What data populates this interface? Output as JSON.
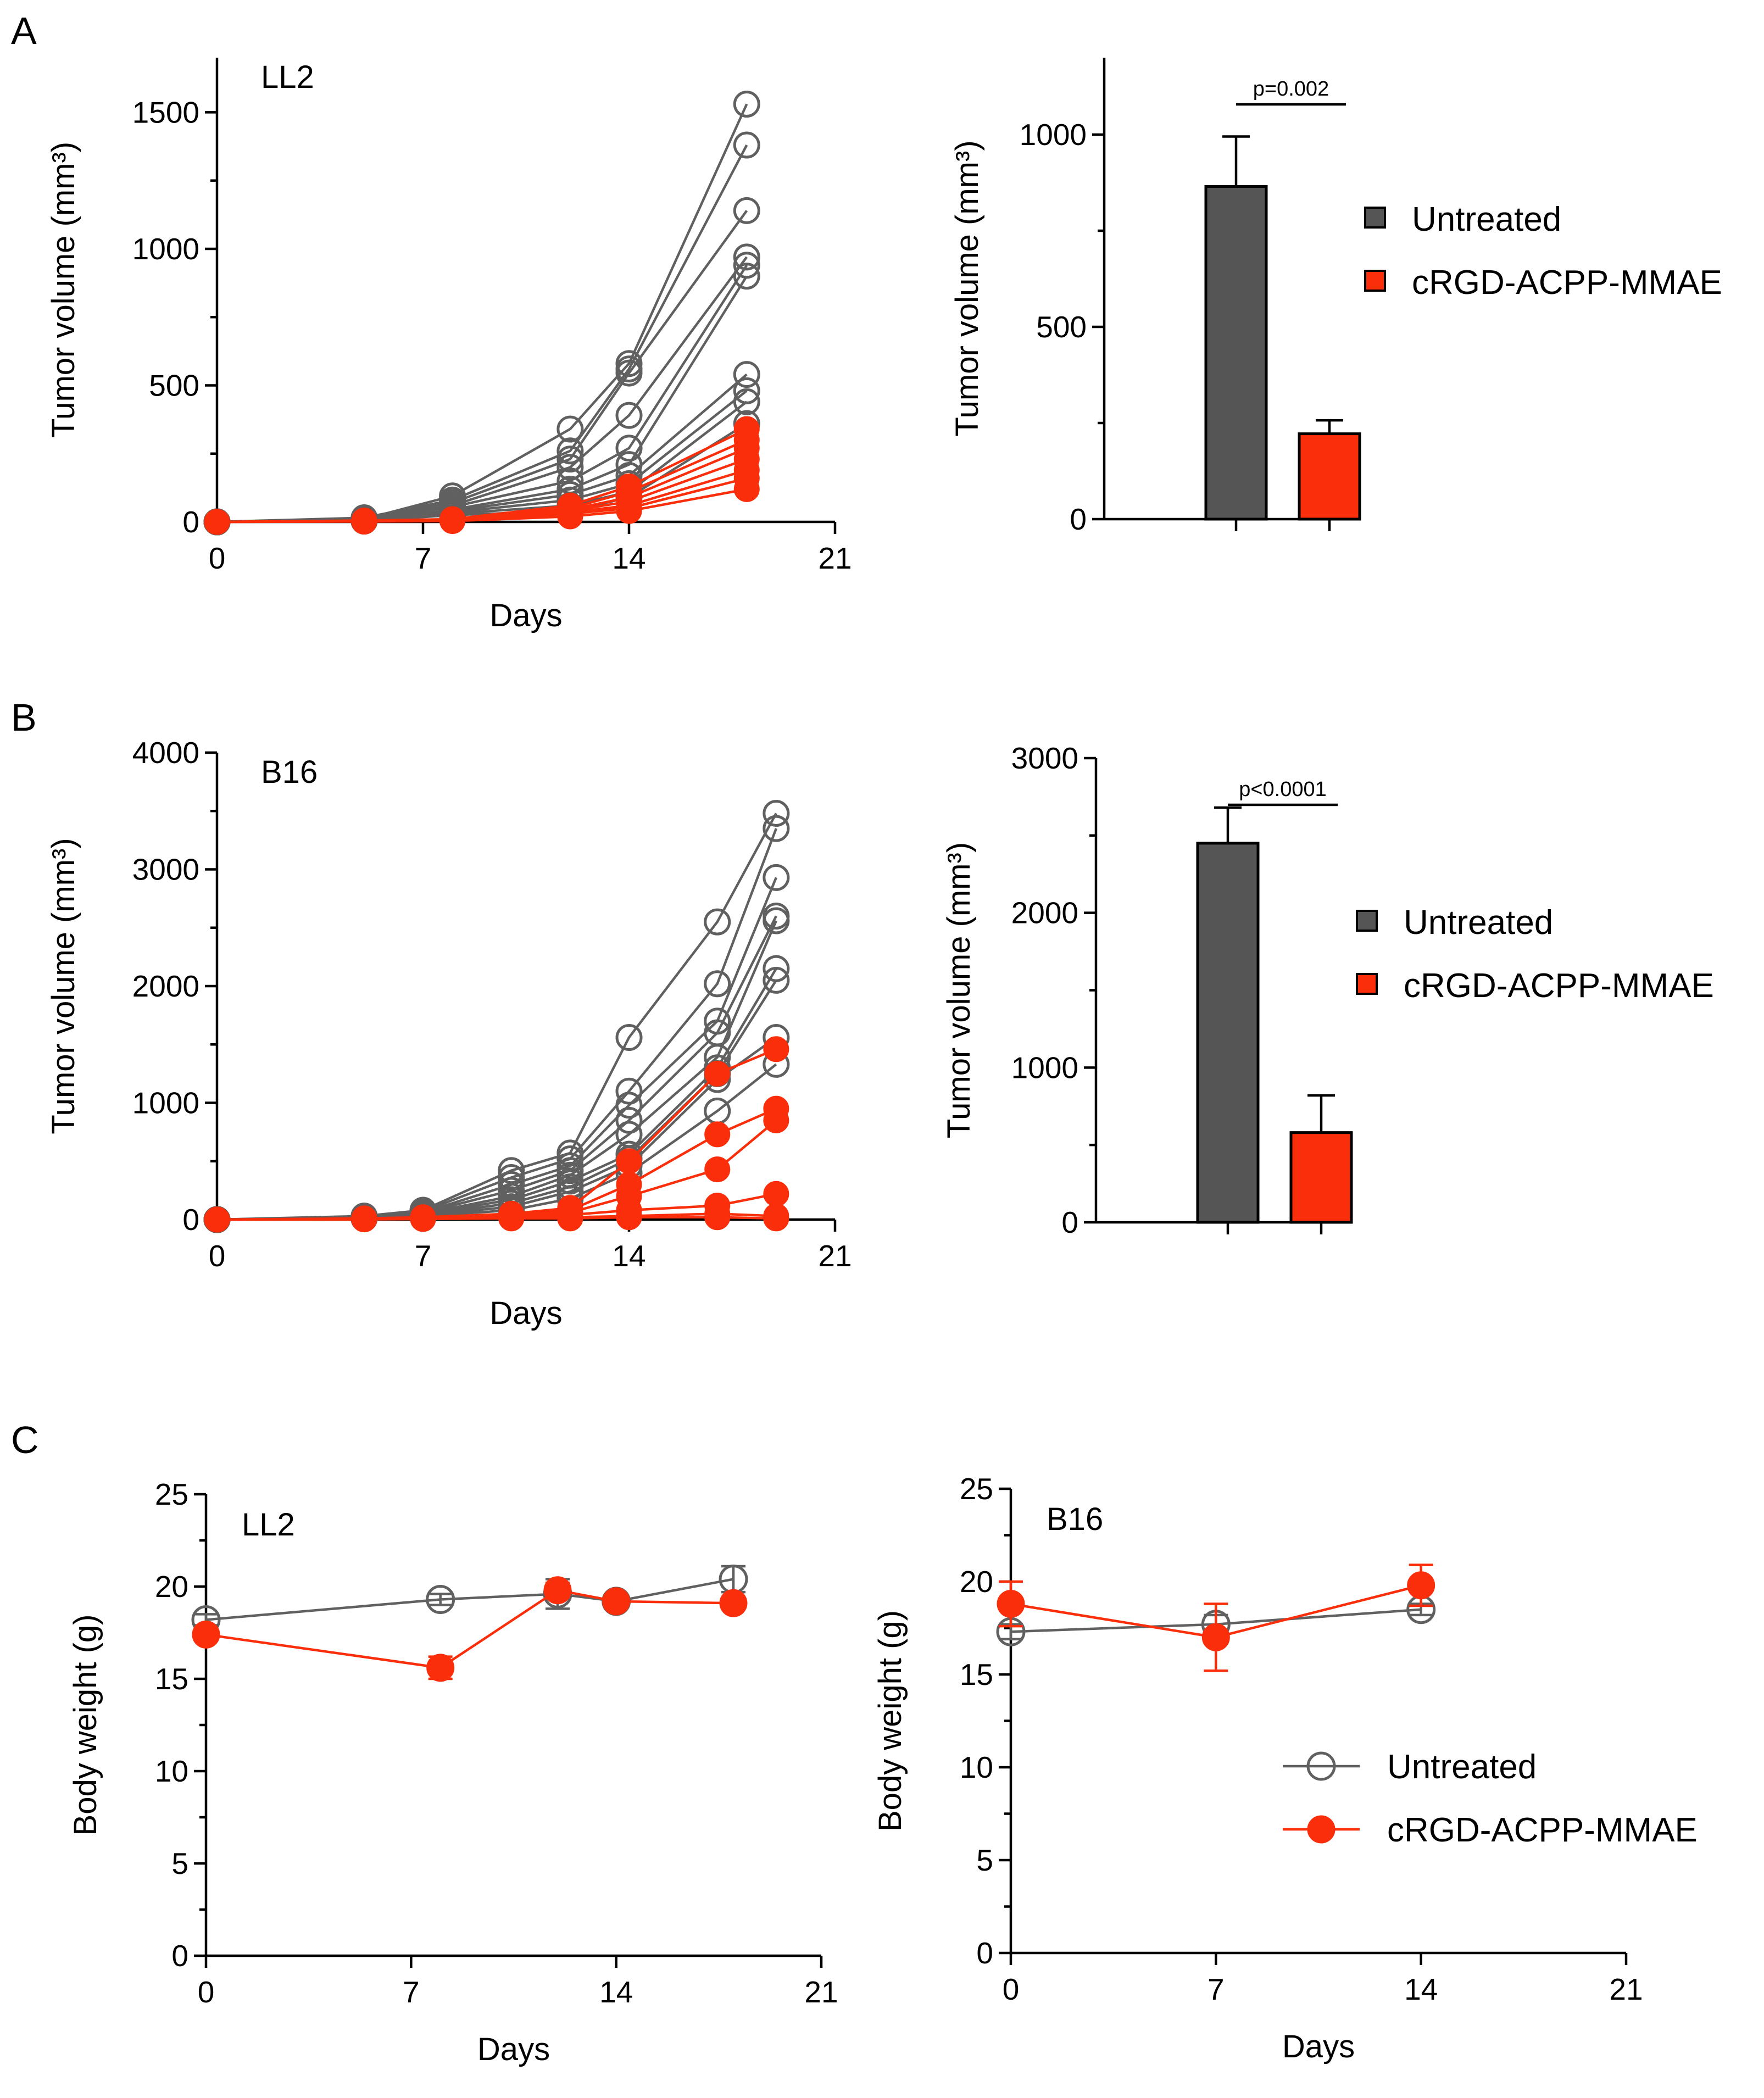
{
  "figure": {
    "panel_letters": [
      "A",
      "B",
      "C"
    ]
  },
  "colors": {
    "untreated": "#606060",
    "treated": "#fa2e0a",
    "bar_untreated": "#555555",
    "bar_treated": "#fa2e0a"
  },
  "chart_data": [
    {
      "id": "A_lines",
      "type": "line",
      "panel": "A",
      "inset_label": "LL2",
      "xlabel": "Days",
      "ylabel": "Tumor volume (mm³)",
      "xlim": [
        0,
        21
      ],
      "ylim": [
        0,
        1700
      ],
      "xticks": [
        0,
        7,
        14,
        21
      ],
      "yticks": [
        0,
        500,
        1000,
        1500
      ],
      "x": [
        0,
        5,
        8,
        12,
        14,
        18
      ],
      "groups": [
        {
          "name": "Untreated",
          "marker": "open-circle",
          "series": [
            {
              "values": [
                0,
                10,
                95,
                340,
                580,
                1530
              ]
            },
            {
              "values": [
                0,
                15,
                80,
                260,
                560,
                1380
              ]
            },
            {
              "values": [
                0,
                12,
                70,
                230,
                545,
                1140
              ]
            },
            {
              "values": [
                0,
                8,
                60,
                200,
                390,
                970
              ]
            },
            {
              "values": [
                0,
                10,
                55,
                150,
                270,
                940
              ]
            },
            {
              "values": [
                0,
                5,
                45,
                120,
                210,
                900
              ]
            },
            {
              "values": [
                0,
                7,
                40,
                100,
                170,
                540
              ]
            },
            {
              "values": [
                0,
                6,
                35,
                80,
                140,
                480
              ]
            },
            {
              "values": [
                0,
                4,
                30,
                60,
                110,
                440
              ]
            },
            {
              "values": [
                0,
                3,
                25,
                40,
                90,
                360
              ]
            }
          ]
        },
        {
          "name": "cRGD-ACPP-MMAE",
          "marker": "filled-circle",
          "series": [
            {
              "values": [
                0,
                5,
                10,
                60,
                130,
                340
              ]
            },
            {
              "values": [
                0,
                4,
                8,
                50,
                110,
                300
              ]
            },
            {
              "values": [
                0,
                3,
                6,
                45,
                90,
                270
              ]
            },
            {
              "values": [
                0,
                3,
                5,
                40,
                75,
                230
              ]
            },
            {
              "values": [
                0,
                2,
                4,
                35,
                60,
                190
              ]
            },
            {
              "values": [
                0,
                2,
                4,
                30,
                50,
                160
              ]
            },
            {
              "values": [
                0,
                1,
                3,
                20,
                40,
                120
              ]
            }
          ]
        }
      ]
    },
    {
      "id": "A_bar",
      "type": "bar",
      "panel": "A",
      "ylabel": "Tumor volume (mm³)",
      "categories": [
        "Untreated",
        "cRGD-ACPP-MMAE"
      ],
      "values": [
        865,
        222
      ],
      "errors": [
        130,
        35
      ],
      "ylim": [
        0,
        1200
      ],
      "yticks": [
        0,
        500,
        1000
      ],
      "significance": "p=0.002",
      "legend": [
        "Untreated",
        "cRGD-ACPP-MMAE"
      ]
    },
    {
      "id": "B_lines",
      "type": "line",
      "panel": "B",
      "inset_label": "B16",
      "xlabel": "Days",
      "ylabel": "Tumor volume (mm³)",
      "xlim": [
        0,
        21
      ],
      "ylim": [
        0,
        4000
      ],
      "xticks": [
        0,
        7,
        14,
        21
      ],
      "yticks": [
        0,
        1000,
        2000,
        3000,
        4000
      ],
      "x": [
        0,
        5,
        7,
        10,
        12,
        14,
        17,
        19
      ],
      "groups": [
        {
          "name": "Untreated",
          "marker": "open-circle",
          "series": [
            {
              "values": [
                0,
                30,
                80,
                420,
                570,
                1560,
                2550,
                3480
              ]
            },
            {
              "values": [
                0,
                25,
                70,
                360,
                520,
                1100,
                2020,
                3350
              ]
            },
            {
              "values": [
                0,
                20,
                60,
                300,
                460,
                980,
                1700,
                2930
              ]
            },
            {
              "values": [
                0,
                20,
                55,
                250,
                420,
                850,
                1600,
                2600
              ]
            },
            {
              "values": [
                0,
                15,
                50,
                200,
                380,
                730,
                1390,
                2560
              ]
            },
            {
              "values": [
                0,
                15,
                45,
                170,
                330,
                560,
                1300,
                2150
              ]
            },
            {
              "values": [
                0,
                12,
                40,
                140,
                280,
                520,
                1250,
                2050
              ]
            },
            {
              "values": [
                0,
                10,
                35,
                110,
                240,
                460,
                1200,
                1560
              ]
            },
            {
              "values": [
                0,
                8,
                30,
                80,
                180,
                400,
                930,
                1330
              ]
            }
          ]
        },
        {
          "name": "cRGD-ACPP-MMAE",
          "marker": "filled-circle",
          "series": [
            {
              "values": [
                0,
                10,
                20,
                50,
                100,
                500,
                1250,
                1460
              ]
            },
            {
              "values": [
                0,
                8,
                15,
                40,
                80,
                300,
                730,
                950
              ]
            },
            {
              "values": [
                0,
                6,
                12,
                30,
                60,
                200,
                430,
                850
              ]
            },
            {
              "values": [
                0,
                5,
                10,
                20,
                40,
                80,
                120,
                220
              ]
            },
            {
              "values": [
                0,
                3,
                8,
                15,
                20,
                30,
                50,
                30
              ]
            },
            {
              "values": [
                0,
                2,
                5,
                10,
                10,
                20,
                20,
                10
              ]
            }
          ]
        }
      ]
    },
    {
      "id": "B_bar",
      "type": "bar",
      "panel": "B",
      "ylabel": "Tumor volume (mm³)",
      "categories": [
        "Untreated",
        "cRGD-ACPP-MMAE"
      ],
      "values": [
        2450,
        580
      ],
      "errors": [
        230,
        240
      ],
      "ylim": [
        0,
        3000
      ],
      "yticks": [
        0,
        1000,
        2000,
        3000
      ],
      "significance": "p<0.0001",
      "legend": [
        "Untreated",
        "cRGD-ACPP-MMAE"
      ]
    },
    {
      "id": "C_left",
      "type": "line",
      "panel": "C",
      "inset_label": "LL2",
      "xlabel": "Days",
      "ylabel": "Body weight (g)",
      "xlim": [
        0,
        21
      ],
      "ylim": [
        0,
        25
      ],
      "xticks": [
        0,
        7,
        14,
        21
      ],
      "yticks": [
        0,
        5,
        10,
        15,
        20,
        25
      ],
      "series": [
        {
          "name": "Untreated",
          "marker": "open-circle",
          "x": [
            0,
            8,
            12,
            14,
            18
          ],
          "values": [
            18.2,
            19.3,
            19.6,
            19.2,
            20.4
          ],
          "errors": [
            0.3,
            0.3,
            0.8,
            0.3,
            0.7
          ]
        },
        {
          "name": "cRGD-ACPP-MMAE",
          "marker": "filled-circle",
          "x": [
            0,
            8,
            12,
            14,
            18
          ],
          "values": [
            17.4,
            15.6,
            19.8,
            19.2,
            19.1
          ],
          "errors": [
            0.3,
            0.6,
            0.4,
            0.3,
            0.3
          ]
        }
      ]
    },
    {
      "id": "C_right",
      "type": "line",
      "panel": "C",
      "inset_label": "B16",
      "xlabel": "Days",
      "ylabel": "Body weight (g)",
      "xlim": [
        0,
        21
      ],
      "ylim": [
        0,
        25
      ],
      "xticks": [
        0,
        7,
        14,
        21
      ],
      "yticks": [
        0,
        5,
        10,
        15,
        20,
        25
      ],
      "series": [
        {
          "name": "Untreated",
          "marker": "open-circle",
          "x": [
            0,
            7,
            14
          ],
          "values": [
            17.3,
            17.7,
            18.5
          ],
          "errors": [
            0.4,
            0.5,
            0.3
          ]
        },
        {
          "name": "cRGD-ACPP-MMAE",
          "marker": "filled-circle",
          "x": [
            0,
            7,
            14
          ],
          "values": [
            18.8,
            17.0,
            19.8
          ],
          "errors": [
            1.2,
            1.8,
            1.1
          ]
        }
      ],
      "legend": [
        "Untreated",
        "cRGD-ACPP-MMAE"
      ]
    }
  ]
}
